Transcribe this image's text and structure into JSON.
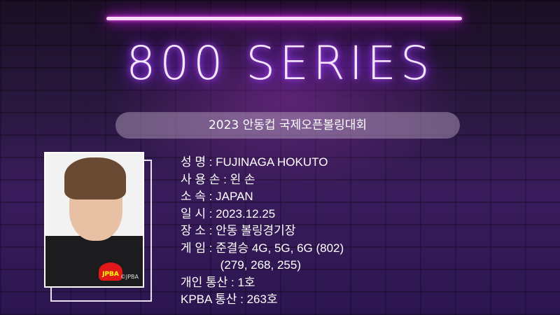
{
  "header": {
    "title": "800 SERIES",
    "event": "2023 안동컵 국제오픈볼링대회"
  },
  "photo": {
    "watermark": "©JPBA",
    "badge": "JPBA"
  },
  "info": [
    "성 명 : FUJINAGA HOKUTO",
    "사 용 손 : 왼 손",
    "소 속 : JAPAN",
    "일 시 : 2023.12.25",
    "장 소 : 안동 볼링경기장",
    "게 임 : 준결승 4G, 5G, 6G (802)",
    "            (279, 268, 255)",
    "개인 통산 : 1호",
    "KPBA 통산 : 263호"
  ],
  "colors": {
    "neon": "#e020ff",
    "background": "#2a1840"
  }
}
